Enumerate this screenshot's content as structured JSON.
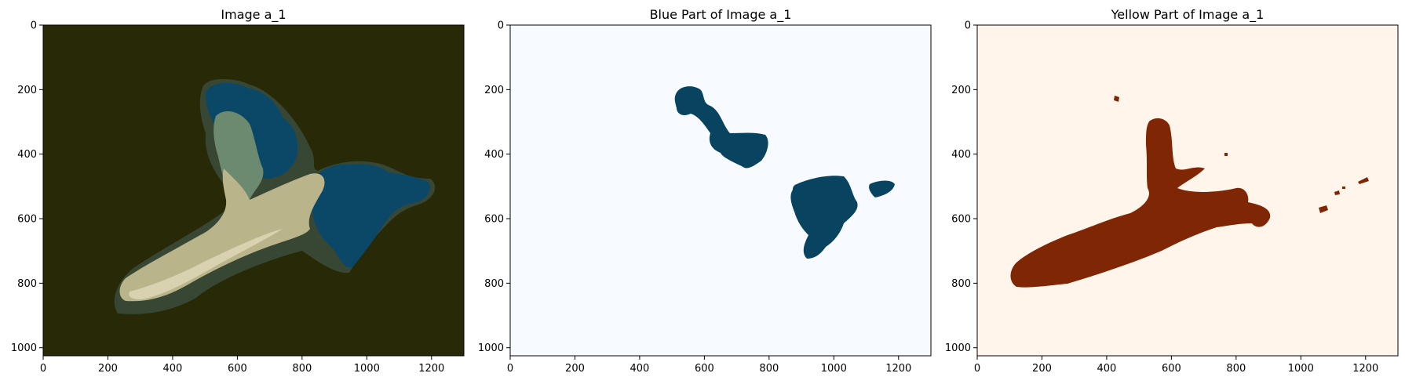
{
  "chart_data": [
    {
      "type": "image",
      "title": "Image a_1",
      "xlim": [
        0,
        1300
      ],
      "ylim": [
        1025,
        0
      ],
      "xticks": [
        0,
        200,
        400,
        600,
        800,
        1000,
        1200
      ],
      "yticks": [
        0,
        200,
        400,
        600,
        800,
        1000
      ],
      "background_color": "#282a07",
      "region_colors": {
        "halo": "#3a4a3a",
        "blue": "#0b4868",
        "green": "#6b8a70",
        "tan": "#b9b48a",
        "light": "#d8d2b0"
      }
    },
    {
      "type": "image",
      "title": "Blue Part of Image a_1",
      "xlim": [
        0,
        1300
      ],
      "ylim": [
        1025,
        0
      ],
      "xticks": [
        0,
        200,
        400,
        600,
        800,
        1000,
        1200
      ],
      "yticks": [
        0,
        200,
        400,
        600,
        800,
        1000
      ],
      "background_color": "#f7fbff",
      "mask_color": "#08445f"
    },
    {
      "type": "image",
      "title": "Yellow Part of Image a_1",
      "xlim": [
        0,
        1300
      ],
      "ylim": [
        1025,
        0
      ],
      "xticks": [
        0,
        200,
        400,
        600,
        800,
        1000,
        1200
      ],
      "yticks": [
        0,
        200,
        400,
        600,
        800,
        1000
      ],
      "background_color": "#fff5eb",
      "mask_color": "#7f2704"
    }
  ]
}
